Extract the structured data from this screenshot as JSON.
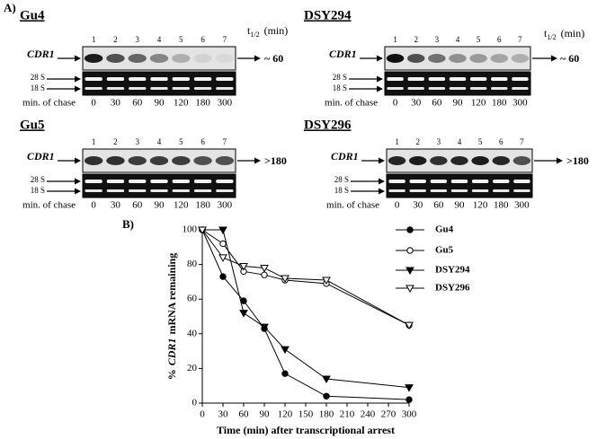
{
  "panel_a": {
    "label": "A)",
    "blots": [
      {
        "title": "Gu4",
        "lanes": [
          1,
          2,
          3,
          4,
          5,
          6,
          7
        ],
        "gene": "CDR1",
        "rrna": [
          "28 S",
          "18 S"
        ],
        "chase_label": "min. of chase",
        "chase": [
          0,
          30,
          60,
          90,
          120,
          180,
          300
        ],
        "half_life": "~ 60",
        "t_half": {
          "symbol": "t",
          "subscript": "1/2",
          "unit": "(min)"
        }
      },
      {
        "title": "DSY294",
        "lanes": [
          1,
          2,
          3,
          4,
          5,
          6,
          7
        ],
        "gene": "CDR1",
        "rrna": [
          "28 S",
          "18 S"
        ],
        "chase_label": "min. of chase",
        "chase": [
          0,
          30,
          60,
          90,
          120,
          180,
          300
        ],
        "half_life": "~ 60",
        "t_half": {
          "symbol": "t",
          "subscript": "1/2",
          "unit": "(min)"
        }
      },
      {
        "title": "Gu5",
        "lanes": [
          1,
          2,
          3,
          4,
          5,
          6,
          7
        ],
        "gene": "CDR1",
        "rrna": [
          "28 S",
          "18 S"
        ],
        "chase_label": "min. of chase",
        "chase": [
          0,
          30,
          60,
          90,
          120,
          180,
          300
        ],
        "half_life": ">180"
      },
      {
        "title": "DSY296",
        "lanes": [
          1,
          2,
          3,
          4,
          5,
          6,
          7
        ],
        "gene": "CDR1",
        "rrna": [
          "28 S",
          "18 S"
        ],
        "chase_label": "min. of chase",
        "chase": [
          0,
          30,
          60,
          90,
          120,
          180,
          300
        ],
        "half_life": ">180"
      }
    ]
  },
  "chart_data": {
    "type": "line",
    "panel_label": "B)",
    "xlabel": "Time (min) after transcriptional arrest",
    "ylabel": [
      "%",
      "CDR1",
      "mRNA remaining"
    ],
    "x": [
      0,
      30,
      60,
      90,
      120,
      180,
      300
    ],
    "series": [
      {
        "name": "Gu4",
        "color": "#000000",
        "marker": "circle",
        "filled": true,
        "values": [
          100,
          73,
          59,
          43,
          17,
          4,
          2
        ]
      },
      {
        "name": "Gu5",
        "color": "#000000",
        "marker": "circle",
        "filled": false,
        "values": [
          100,
          92,
          76,
          74,
          71,
          69,
          45
        ]
      },
      {
        "name": "DSY294",
        "color": "#000000",
        "marker": "triangle-down",
        "filled": true,
        "values": [
          100,
          100,
          52,
          44,
          31,
          14,
          9
        ]
      },
      {
        "name": "DSY296",
        "color": "#000000",
        "marker": "triangle-down",
        "filled": false,
        "values": [
          100,
          84,
          79,
          78,
          72,
          71,
          45
        ]
      }
    ],
    "xlim": [
      0,
      300
    ],
    "xticks": [
      0,
      30,
      60,
      90,
      120,
      150,
      180,
      210,
      240,
      270,
      300
    ],
    "ylim": [
      0,
      100
    ],
    "yticks": [
      0,
      20,
      40,
      60,
      80,
      100
    ],
    "grid": false,
    "legend": "right"
  }
}
